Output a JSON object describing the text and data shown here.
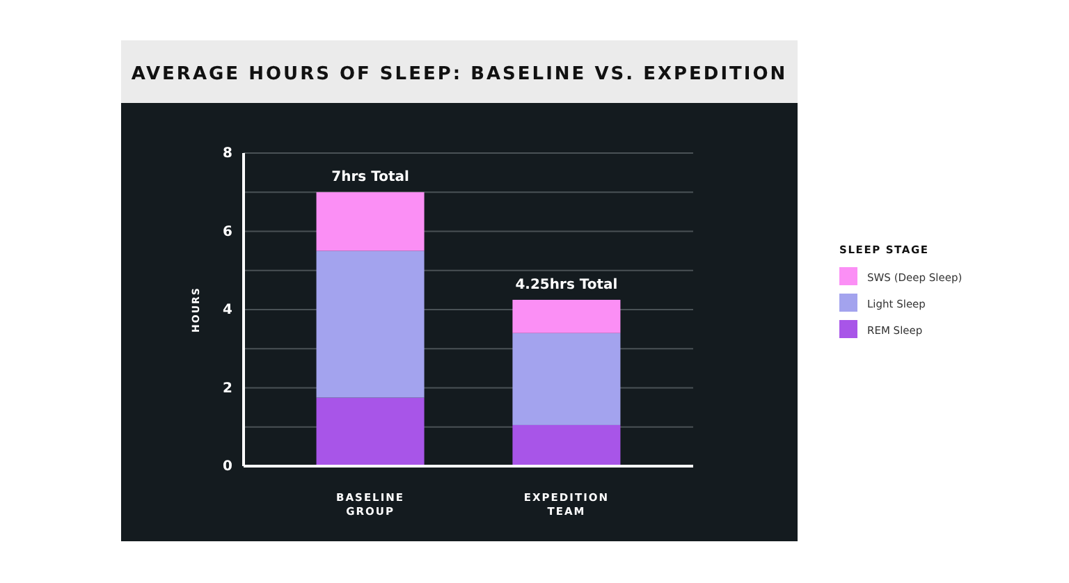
{
  "chart_data": {
    "type": "bar",
    "title": "AVERAGE HOURS OF SLEEP: BASELINE VS. EXPEDITION",
    "ylabel": "HOURS",
    "legend_title": "SLEEP STAGE",
    "categories": [
      "BASELINE\nGROUP",
      "EXPEDITION\nTEAM"
    ],
    "stacked": true,
    "series": [
      {
        "name": "REM Sleep",
        "color": "#a855e8",
        "values": [
          1.75,
          1.05
        ]
      },
      {
        "name": "Light Sleep",
        "color": "#a3a3ee",
        "values": [
          3.75,
          2.35
        ]
      },
      {
        "name": "SWS (Deep Sleep)",
        "color": "#fb8ff5",
        "values": [
          1.5,
          0.85
        ]
      }
    ],
    "totals": [
      "7hrs Total",
      "4.25hrs Total"
    ],
    "ylim": [
      0,
      8
    ],
    "yticks": [
      0,
      {
        "value": 1,
        "label": null
      },
      2,
      {
        "value": 3,
        "label": null
      },
      4,
      {
        "value": 5,
        "label": null
      },
      6,
      {
        "value": 7,
        "label": null
      },
      8
    ],
    "grid": "y",
    "legend": "right"
  }
}
